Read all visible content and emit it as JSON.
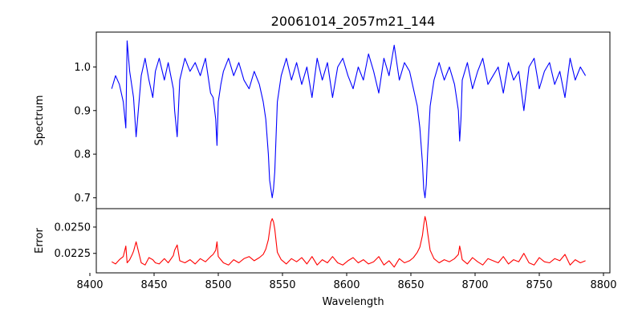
{
  "chart_data": [
    {
      "type": "line",
      "title": "20061014_2057m21_144",
      "xlabel": "",
      "ylabel": "Spectrum",
      "xlim": [
        8405,
        8805
      ],
      "ylim": [
        0.675,
        1.08
      ],
      "yticks": [
        0.7,
        0.8,
        0.9,
        1.0
      ],
      "yticklabels": [
        "0.7",
        "0.8",
        "0.9",
        "1.0"
      ],
      "series": [
        {
          "color": "#0000ff",
          "x": [
            8417,
            8420,
            8423,
            8426,
            8428,
            8429,
            8431,
            8433,
            8434,
            8436,
            8440,
            8443,
            8446,
            8449,
            8451,
            8454,
            8458,
            8461,
            8465,
            8466,
            8468,
            8470,
            8474,
            8478,
            8482,
            8486,
            8490,
            8494,
            8496,
            8498,
            8499,
            8500,
            8502,
            8504,
            8508,
            8512,
            8516,
            8520,
            8524,
            8528,
            8532,
            8535,
            8537,
            8539,
            8540,
            8541,
            8542,
            8543,
            8544,
            8546,
            8549,
            8553,
            8557,
            8561,
            8565,
            8569,
            8573,
            8577,
            8581,
            8585,
            8589,
            8593,
            8597,
            8601,
            8605,
            8609,
            8613,
            8617,
            8621,
            8625,
            8629,
            8633,
            8637,
            8641,
            8645,
            8649,
            8652,
            8655,
            8657,
            8659,
            8660,
            8661,
            8662,
            8663,
            8665,
            8668,
            8672,
            8676,
            8680,
            8684,
            8687,
            8688,
            8689,
            8690,
            8694,
            8698,
            8702,
            8706,
            8710,
            8714,
            8718,
            8722,
            8726,
            8730,
            8734,
            8738,
            8742,
            8746,
            8750,
            8754,
            8758,
            8762,
            8766,
            8770,
            8774,
            8778,
            8782,
            8786
          ],
          "y": [
            0.95,
            0.98,
            0.96,
            0.92,
            0.86,
            1.06,
            0.99,
            0.95,
            0.93,
            0.84,
            0.98,
            1.02,
            0.97,
            0.93,
            0.99,
            1.02,
            0.97,
            1.01,
            0.95,
            0.9,
            0.84,
            0.97,
            1.02,
            0.99,
            1.01,
            0.98,
            1.02,
            0.94,
            0.93,
            0.88,
            0.82,
            0.92,
            0.96,
            0.99,
            1.02,
            0.98,
            1.01,
            0.97,
            0.95,
            0.99,
            0.96,
            0.92,
            0.88,
            0.8,
            0.74,
            0.72,
            0.7,
            0.72,
            0.76,
            0.92,
            0.98,
            1.02,
            0.97,
            1.01,
            0.96,
            1.0,
            0.93,
            1.02,
            0.97,
            1.01,
            0.93,
            1.0,
            1.02,
            0.98,
            0.95,
            1.0,
            0.97,
            1.03,
            0.99,
            0.94,
            1.02,
            0.98,
            1.05,
            0.97,
            1.01,
            0.99,
            0.95,
            0.91,
            0.86,
            0.78,
            0.72,
            0.7,
            0.73,
            0.8,
            0.91,
            0.97,
            1.01,
            0.97,
            1.0,
            0.96,
            0.9,
            0.83,
            0.88,
            0.97,
            1.01,
            0.95,
            0.99,
            1.02,
            0.96,
            0.98,
            1.0,
            0.94,
            1.01,
            0.97,
            0.99,
            0.9,
            1.0,
            1.02,
            0.95,
            0.99,
            1.01,
            0.96,
            0.99,
            0.93,
            1.02,
            0.97,
            1.0,
            0.98
          ]
        }
      ]
    },
    {
      "type": "line",
      "title": "",
      "xlabel": "Wavelength",
      "ylabel": "Error",
      "xlim": [
        8405,
        8805
      ],
      "ylim": [
        0.02065,
        0.02675
      ],
      "yticks": [
        0.0225,
        0.025
      ],
      "yticklabels": [
        "0.0225",
        "0.0250"
      ],
      "xticks": [
        8400,
        8450,
        8500,
        8550,
        8600,
        8650,
        8700,
        8750,
        8800
      ],
      "xticklabels": [
        "8400",
        "8450",
        "8500",
        "8550",
        "8600",
        "8650",
        "8700",
        "8750",
        "8800"
      ],
      "series": [
        {
          "color": "#ff0000",
          "x": [
            8417,
            8420,
            8423,
            8426,
            8428,
            8429,
            8431,
            8433,
            8434,
            8436,
            8440,
            8443,
            8446,
            8449,
            8451,
            8454,
            8458,
            8461,
            8465,
            8466,
            8468,
            8470,
            8474,
            8478,
            8482,
            8486,
            8490,
            8494,
            8496,
            8498,
            8499,
            8500,
            8502,
            8504,
            8508,
            8512,
            8516,
            8520,
            8524,
            8528,
            8532,
            8535,
            8537,
            8539,
            8540,
            8541,
            8542,
            8543,
            8544,
            8546,
            8549,
            8553,
            8557,
            8561,
            8565,
            8569,
            8573,
            8577,
            8581,
            8585,
            8589,
            8593,
            8597,
            8601,
            8605,
            8609,
            8613,
            8617,
            8621,
            8625,
            8629,
            8633,
            8637,
            8641,
            8645,
            8649,
            8652,
            8655,
            8657,
            8659,
            8660,
            8661,
            8662,
            8663,
            8665,
            8668,
            8672,
            8676,
            8680,
            8684,
            8687,
            8688,
            8689,
            8690,
            8694,
            8698,
            8702,
            8706,
            8710,
            8714,
            8718,
            8722,
            8726,
            8730,
            8734,
            8738,
            8742,
            8746,
            8750,
            8754,
            8758,
            8762,
            8766,
            8770,
            8774,
            8778,
            8782,
            8786
          ],
          "y": [
            0.0217,
            0.0215,
            0.0219,
            0.0222,
            0.0232,
            0.0216,
            0.0219,
            0.0224,
            0.0227,
            0.0236,
            0.0216,
            0.0214,
            0.0221,
            0.0219,
            0.0216,
            0.0215,
            0.022,
            0.0216,
            0.0223,
            0.0228,
            0.0233,
            0.0218,
            0.0216,
            0.0219,
            0.0215,
            0.022,
            0.0217,
            0.0222,
            0.0224,
            0.0228,
            0.0236,
            0.0222,
            0.0219,
            0.0216,
            0.0214,
            0.0219,
            0.0216,
            0.022,
            0.0222,
            0.0218,
            0.0221,
            0.0224,
            0.0229,
            0.0238,
            0.0247,
            0.0255,
            0.0258,
            0.0255,
            0.0248,
            0.0226,
            0.0219,
            0.0215,
            0.022,
            0.0217,
            0.0221,
            0.0215,
            0.0222,
            0.0214,
            0.0219,
            0.0216,
            0.0222,
            0.0216,
            0.0214,
            0.0218,
            0.0221,
            0.0216,
            0.0219,
            0.0215,
            0.0217,
            0.0222,
            0.0214,
            0.0218,
            0.0212,
            0.022,
            0.0216,
            0.0218,
            0.0221,
            0.0226,
            0.0231,
            0.0242,
            0.0252,
            0.026,
            0.0255,
            0.0245,
            0.0228,
            0.022,
            0.0216,
            0.0219,
            0.0217,
            0.022,
            0.0224,
            0.0232,
            0.0226,
            0.0219,
            0.0215,
            0.0221,
            0.0217,
            0.0214,
            0.022,
            0.0218,
            0.0216,
            0.0222,
            0.0215,
            0.0219,
            0.0217,
            0.0225,
            0.0216,
            0.0214,
            0.0221,
            0.0217,
            0.0216,
            0.022,
            0.0218,
            0.0224,
            0.0214,
            0.0219,
            0.0216,
            0.0218
          ]
        }
      ]
    }
  ]
}
